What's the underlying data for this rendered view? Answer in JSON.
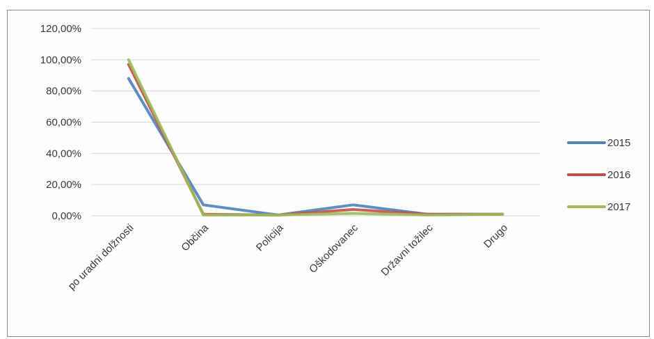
{
  "chart_data": {
    "type": "line",
    "title": "",
    "xlabel": "",
    "ylabel": "",
    "categories": [
      "po uradni dolžnosti",
      "Občina",
      "Policija",
      "Oškodovanec",
      "Državni tožilec",
      "Drugo"
    ],
    "y_tick_labels": [
      "0,00%",
      "20,00%",
      "40,00%",
      "60,00%",
      "80,00%",
      "100,00%",
      "120,00%"
    ],
    "ylim": [
      0,
      120
    ],
    "grid": true,
    "legend_position": "right",
    "series": [
      {
        "name": "2015",
        "color": "#4f81bd",
        "values": [
          88,
          7,
          0.5,
          7,
          1,
          1
        ]
      },
      {
        "name": "2016",
        "color": "#c0504d",
        "values": [
          97,
          1,
          0.5,
          4,
          1,
          1
        ]
      },
      {
        "name": "2017",
        "color": "#9bbb59",
        "values": [
          100,
          0.5,
          0.5,
          1.5,
          0.5,
          1
        ]
      }
    ]
  }
}
